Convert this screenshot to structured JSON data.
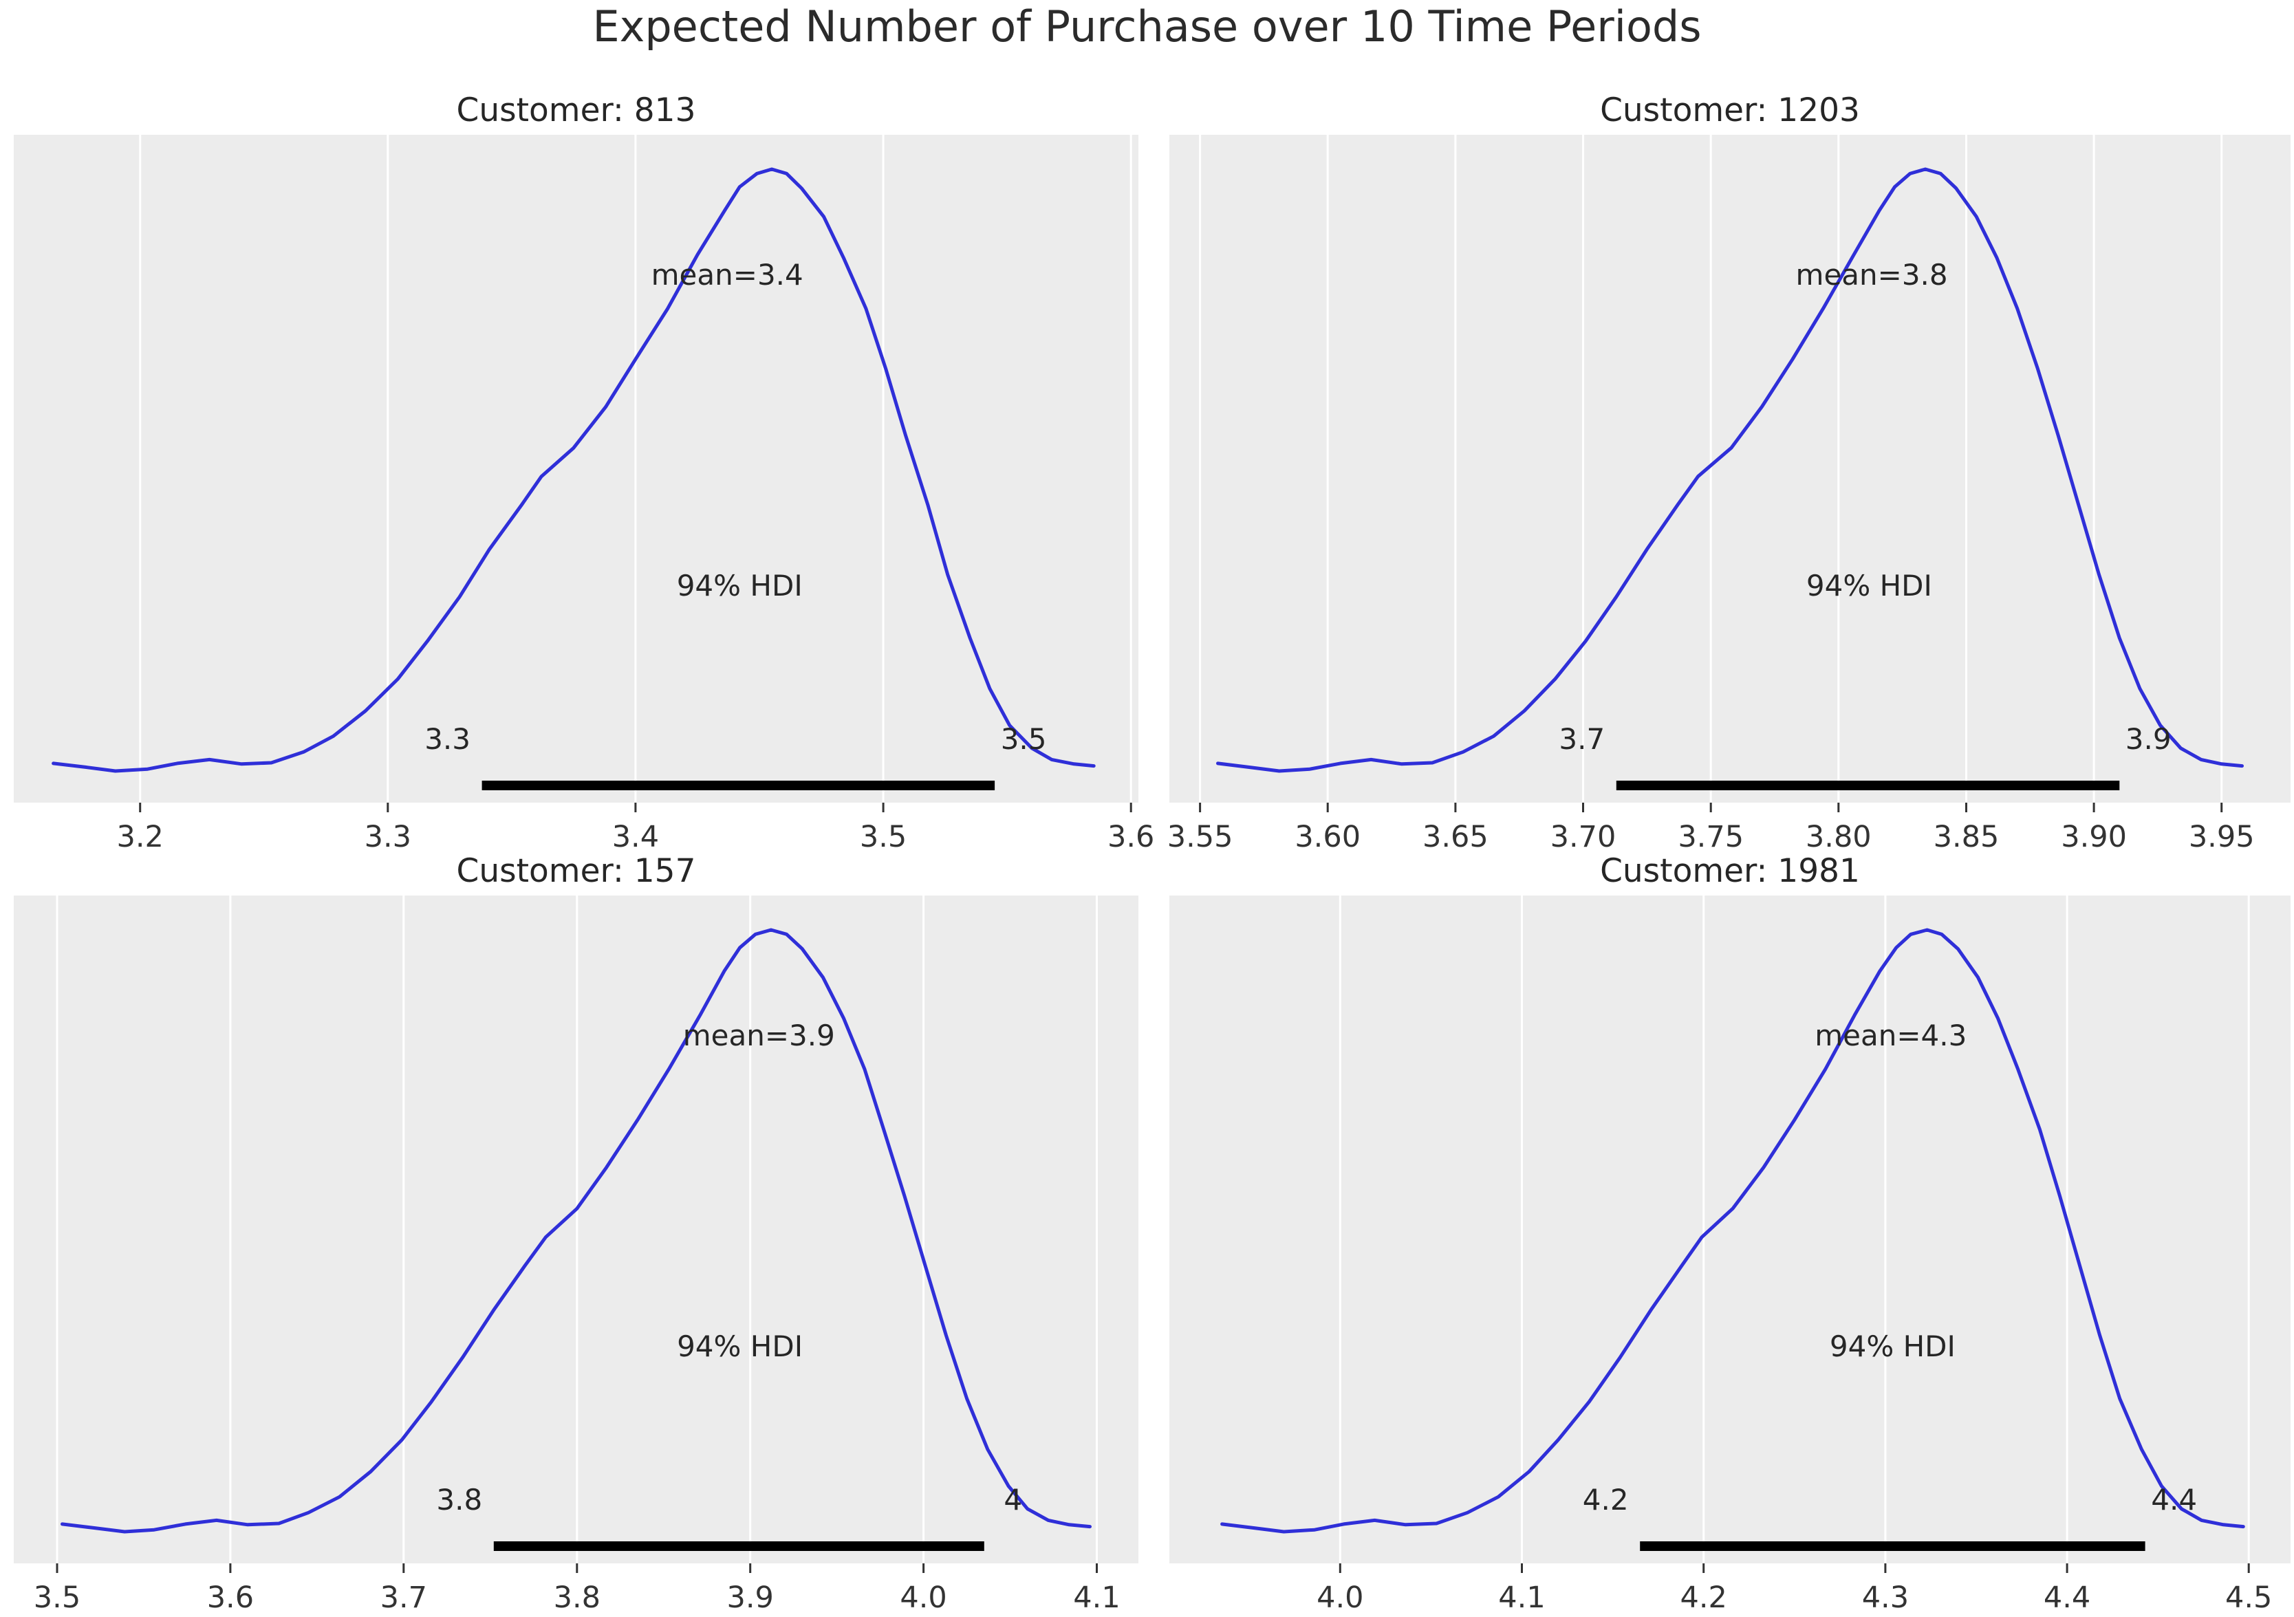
{
  "figure_title": "Expected Number of Purchase over 10 Time Periods",
  "hdi_text": "94% HDI",
  "colors": {
    "curve": "#2f2fd8",
    "hdi_bar": "#000000",
    "plot_bg": "#ececec",
    "grid": "#ffffff",
    "tick_text": "#333333",
    "label_text": "#262626"
  },
  "chart_data": [
    {
      "type": "area",
      "title": "Customer: 813",
      "mean": 3.4,
      "mean_label": "mean=3.4",
      "mean_x": 3.437,
      "hdi": {
        "lo": 3.338,
        "hi": 3.545,
        "lo_label": "3.3",
        "hi_label": "3.5",
        "probability": "94%"
      },
      "hdi_text_x": 3.442,
      "xlim": [
        3.149,
        3.603
      ],
      "ticks": [
        3.2,
        3.3,
        3.4,
        3.5,
        3.6
      ],
      "tick_labels": [
        "3.2",
        "3.3",
        "3.4",
        "3.5",
        "3.6"
      ],
      "curve": [
        [
          3.165,
          0.062
        ],
        [
          3.178,
          0.056
        ],
        [
          3.19,
          0.05
        ],
        [
          3.203,
          0.053
        ],
        [
          3.215,
          0.062
        ],
        [
          3.228,
          0.068
        ],
        [
          3.241,
          0.061
        ],
        [
          3.253,
          0.063
        ],
        [
          3.266,
          0.08
        ],
        [
          3.278,
          0.105
        ],
        [
          3.291,
          0.145
        ],
        [
          3.304,
          0.195
        ],
        [
          3.316,
          0.255
        ],
        [
          3.329,
          0.325
        ],
        [
          3.341,
          0.4
        ],
        [
          3.354,
          0.47
        ],
        [
          3.362,
          0.515
        ],
        [
          3.375,
          0.56
        ],
        [
          3.388,
          0.625
        ],
        [
          3.4,
          0.7
        ],
        [
          3.413,
          0.78
        ],
        [
          3.425,
          0.865
        ],
        [
          3.436,
          0.935
        ],
        [
          3.442,
          0.972
        ],
        [
          3.449,
          0.993
        ],
        [
          3.455,
          1.0
        ],
        [
          3.461,
          0.993
        ],
        [
          3.467,
          0.97
        ],
        [
          3.476,
          0.925
        ],
        [
          3.484,
          0.86
        ],
        [
          3.493,
          0.78
        ],
        [
          3.501,
          0.685
        ],
        [
          3.509,
          0.58
        ],
        [
          3.518,
          0.47
        ],
        [
          3.526,
          0.36
        ],
        [
          3.535,
          0.26
        ],
        [
          3.543,
          0.18
        ],
        [
          3.551,
          0.122
        ],
        [
          3.56,
          0.086
        ],
        [
          3.568,
          0.068
        ],
        [
          3.577,
          0.061
        ],
        [
          3.585,
          0.058
        ]
      ]
    },
    {
      "type": "area",
      "title": "Customer: 1203",
      "mean": 3.8,
      "mean_label": "mean=3.8",
      "mean_x": 3.813,
      "hdi": {
        "lo": 3.713,
        "hi": 3.91,
        "lo_label": "3.7",
        "hi_label": "3.9",
        "probability": "94%"
      },
      "hdi_text_x": 3.812,
      "xlim": [
        3.538,
        3.977
      ],
      "ticks": [
        3.55,
        3.6,
        3.65,
        3.7,
        3.75,
        3.8,
        3.85,
        3.9,
        3.95
      ],
      "tick_labels": [
        "3.55",
        "3.60",
        "3.65",
        "3.70",
        "3.75",
        "3.80",
        "3.85",
        "3.90",
        "3.95"
      ],
      "curve": [
        [
          3.557,
          0.062
        ],
        [
          3.569,
          0.056
        ],
        [
          3.581,
          0.05
        ],
        [
          3.593,
          0.053
        ],
        [
          3.605,
          0.062
        ],
        [
          3.617,
          0.068
        ],
        [
          3.629,
          0.061
        ],
        [
          3.641,
          0.063
        ],
        [
          3.653,
          0.08
        ],
        [
          3.665,
          0.105
        ],
        [
          3.677,
          0.145
        ],
        [
          3.689,
          0.195
        ],
        [
          3.701,
          0.255
        ],
        [
          3.713,
          0.325
        ],
        [
          3.725,
          0.4
        ],
        [
          3.737,
          0.47
        ],
        [
          3.745,
          0.515
        ],
        [
          3.758,
          0.56
        ],
        [
          3.77,
          0.625
        ],
        [
          3.782,
          0.7
        ],
        [
          3.794,
          0.78
        ],
        [
          3.806,
          0.865
        ],
        [
          3.816,
          0.935
        ],
        [
          3.822,
          0.972
        ],
        [
          3.828,
          0.993
        ],
        [
          3.834,
          1.0
        ],
        [
          3.84,
          0.993
        ],
        [
          3.846,
          0.97
        ],
        [
          3.854,
          0.925
        ],
        [
          3.862,
          0.86
        ],
        [
          3.87,
          0.78
        ],
        [
          3.878,
          0.685
        ],
        [
          3.886,
          0.58
        ],
        [
          3.894,
          0.47
        ],
        [
          3.902,
          0.36
        ],
        [
          3.91,
          0.26
        ],
        [
          3.918,
          0.18
        ],
        [
          3.926,
          0.122
        ],
        [
          3.934,
          0.086
        ],
        [
          3.942,
          0.068
        ],
        [
          3.95,
          0.061
        ],
        [
          3.958,
          0.058
        ]
      ]
    },
    {
      "type": "area",
      "title": "Customer: 157",
      "mean": 3.9,
      "mean_label": "mean=3.9",
      "mean_x": 3.905,
      "hdi": {
        "lo": 3.752,
        "hi": 4.035,
        "lo_label": "3.8",
        "hi_label": "4",
        "probability": "94%"
      },
      "hdi_text_x": 3.894,
      "xlim": [
        3.475,
        4.124
      ],
      "ticks": [
        3.5,
        3.6,
        3.7,
        3.8,
        3.9,
        4.0,
        4.1
      ],
      "tick_labels": [
        "3.5",
        "3.6",
        "3.7",
        "3.8",
        "3.9",
        "4.0",
        "4.1"
      ],
      "curve": [
        [
          3.503,
          0.062
        ],
        [
          3.521,
          0.056
        ],
        [
          3.539,
          0.05
        ],
        [
          3.556,
          0.053
        ],
        [
          3.574,
          0.062
        ],
        [
          3.592,
          0.068
        ],
        [
          3.61,
          0.061
        ],
        [
          3.628,
          0.063
        ],
        [
          3.645,
          0.08
        ],
        [
          3.663,
          0.105
        ],
        [
          3.681,
          0.145
        ],
        [
          3.699,
          0.195
        ],
        [
          3.716,
          0.255
        ],
        [
          3.734,
          0.325
        ],
        [
          3.752,
          0.4
        ],
        [
          3.77,
          0.47
        ],
        [
          3.782,
          0.515
        ],
        [
          3.8,
          0.56
        ],
        [
          3.817,
          0.625
        ],
        [
          3.835,
          0.7
        ],
        [
          3.853,
          0.78
        ],
        [
          3.871,
          0.865
        ],
        [
          3.885,
          0.935
        ],
        [
          3.894,
          0.972
        ],
        [
          3.903,
          0.993
        ],
        [
          3.912,
          1.0
        ],
        [
          3.921,
          0.993
        ],
        [
          3.93,
          0.97
        ],
        [
          3.942,
          0.925
        ],
        [
          3.954,
          0.86
        ],
        [
          3.966,
          0.78
        ],
        [
          3.977,
          0.685
        ],
        [
          3.989,
          0.58
        ],
        [
          4.001,
          0.47
        ],
        [
          4.013,
          0.36
        ],
        [
          4.025,
          0.26
        ],
        [
          4.037,
          0.18
        ],
        [
          4.049,
          0.122
        ],
        [
          4.06,
          0.086
        ],
        [
          4.072,
          0.068
        ],
        [
          4.084,
          0.061
        ],
        [
          4.096,
          0.058
        ]
      ]
    },
    {
      "type": "area",
      "title": "Customer: 1981",
      "mean": 4.3,
      "mean_label": "mean=4.3",
      "mean_x": 4.303,
      "hdi": {
        "lo": 4.165,
        "hi": 4.443,
        "lo_label": "4.2",
        "hi_label": "4.4",
        "probability": "94%"
      },
      "hdi_text_x": 4.304,
      "xlim": [
        3.906,
        4.523
      ],
      "ticks": [
        4.0,
        4.1,
        4.2,
        4.3,
        4.4,
        4.5
      ],
      "tick_labels": [
        "4.0",
        "4.1",
        "4.2",
        "4.3",
        "4.4",
        "4.5"
      ],
      "curve": [
        [
          3.935,
          0.062
        ],
        [
          3.952,
          0.056
        ],
        [
          3.969,
          0.05
        ],
        [
          3.986,
          0.053
        ],
        [
          4.002,
          0.062
        ],
        [
          4.019,
          0.068
        ],
        [
          4.036,
          0.061
        ],
        [
          4.053,
          0.063
        ],
        [
          4.07,
          0.08
        ],
        [
          4.087,
          0.105
        ],
        [
          4.104,
          0.145
        ],
        [
          4.12,
          0.195
        ],
        [
          4.137,
          0.255
        ],
        [
          4.154,
          0.325
        ],
        [
          4.171,
          0.4
        ],
        [
          4.188,
          0.47
        ],
        [
          4.199,
          0.515
        ],
        [
          4.216,
          0.56
        ],
        [
          4.233,
          0.625
        ],
        [
          4.25,
          0.7
        ],
        [
          4.267,
          0.78
        ],
        [
          4.283,
          0.865
        ],
        [
          4.297,
          0.935
        ],
        [
          4.306,
          0.972
        ],
        [
          4.314,
          0.993
        ],
        [
          4.323,
          1.0
        ],
        [
          4.331,
          0.993
        ],
        [
          4.34,
          0.97
        ],
        [
          4.351,
          0.925
        ],
        [
          4.362,
          0.86
        ],
        [
          4.373,
          0.78
        ],
        [
          4.385,
          0.685
        ],
        [
          4.396,
          0.58
        ],
        [
          4.407,
          0.47
        ],
        [
          4.418,
          0.36
        ],
        [
          4.429,
          0.26
        ],
        [
          4.441,
          0.18
        ],
        [
          4.452,
          0.122
        ],
        [
          4.463,
          0.086
        ],
        [
          4.474,
          0.068
        ],
        [
          4.486,
          0.061
        ],
        [
          4.497,
          0.058
        ]
      ]
    }
  ]
}
